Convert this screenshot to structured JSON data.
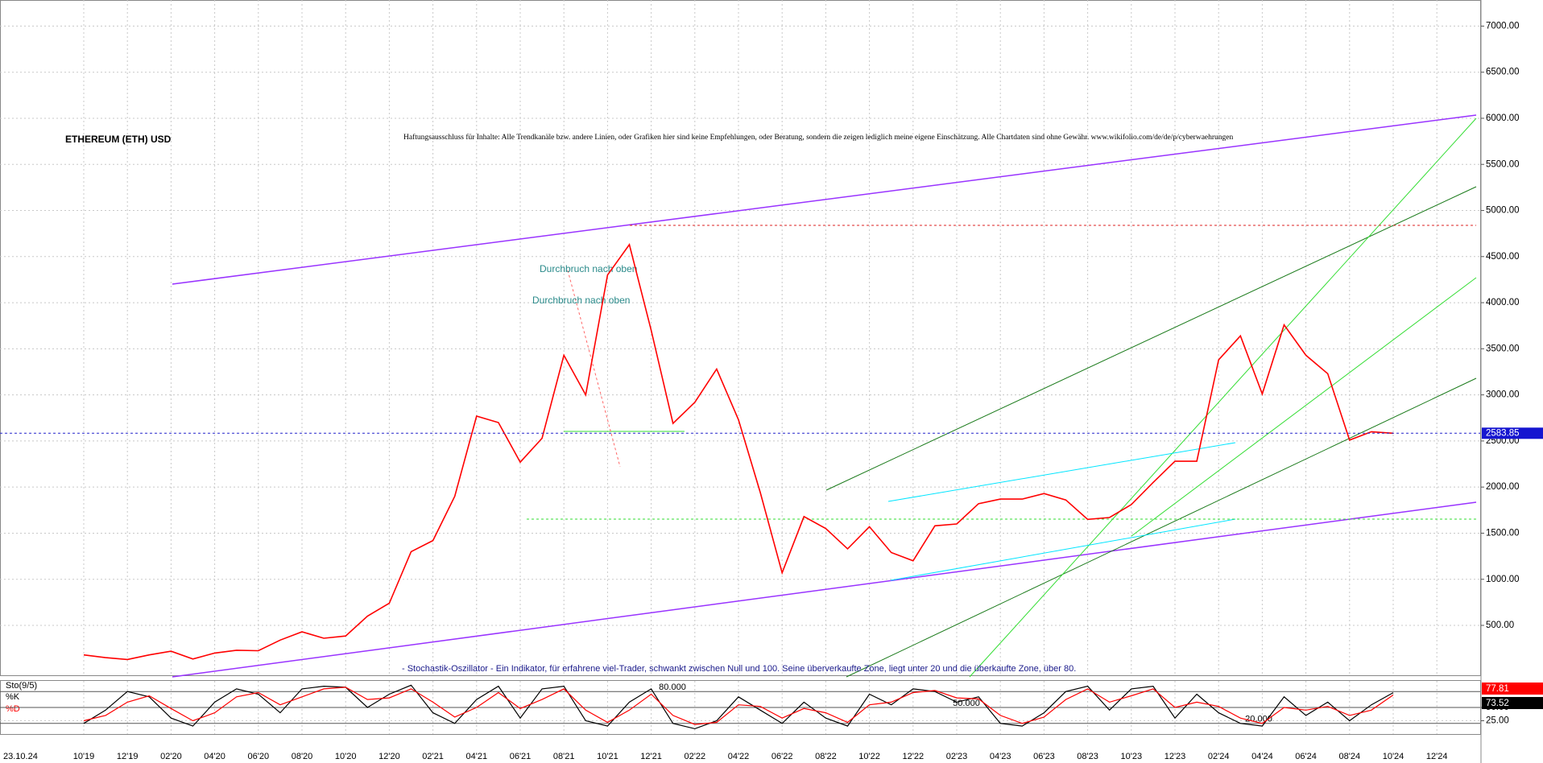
{
  "chart_data": [
    {
      "type": "line",
      "title": "ETHEREUM (ETH) USD",
      "subtitle": "Haftungsausschluss für Inhalte: Alle Trendkanäle bzw. andere Linien, oder Grafiken hier sind keine Empfehlungen, oder Beratung, sondern die zeigen lediglich meine eigene Einschätzung. Alle Chartdaten sind ohne Gewähr.  www.wikifolio.com/de/de/p/cyberwaehrungen",
      "annotations": [
        "Durchbruch nach oben",
        "Durchbruch nach oben",
        "- Stochastik-Oszillator - Ein Indikator, für erfahrene viel-Trader, schwankt zwischen Null und 100. Seine überverkaufte Zone, liegt unter 20 und die überkaufte Zone, über 80."
      ],
      "cursor_date": "23.10.24",
      "categories": [
        "10'19",
        null,
        "12'19",
        null,
        "02'20",
        null,
        "04'20",
        null,
        "06'20",
        null,
        "08'20",
        null,
        "10'20",
        null,
        "12'20",
        null,
        "02'21",
        null,
        "04'21",
        null,
        "06'21",
        null,
        "08'21",
        null,
        "10'21",
        null,
        "12'21",
        null,
        "02'22",
        null,
        "04'22",
        null,
        "06'22",
        null,
        "08'22",
        null,
        "10'22",
        null,
        "12'22",
        null,
        "02'23",
        null,
        "04'23",
        null,
        "06'23",
        null,
        "08'23",
        null,
        "10'23",
        null,
        "12'23",
        null,
        "02'24",
        null,
        "04'24",
        null,
        "06'24",
        null,
        "08'24",
        null,
        "10'24",
        null,
        "12'24"
      ],
      "values": [
        180,
        150,
        130,
        180,
        220,
        135,
        200,
        230,
        225,
        340,
        430,
        360,
        385,
        600,
        740,
        1300,
        1420,
        1900,
        2770,
        2700,
        2270,
        2530,
        3430,
        3000,
        4300,
        4630,
        3700,
        2690,
        2920,
        3280,
        2730,
        1940,
        1070,
        1680,
        1550,
        1330,
        1570,
        1290,
        1200,
        1580,
        1600,
        1820,
        1870,
        1870,
        1930,
        1860,
        1650,
        1670,
        1810,
        2050,
        2280,
        2280,
        3380,
        3640,
        3010,
        3760,
        3430,
        3230,
        2510,
        2600,
        2583.85,
        null,
        null
      ],
      "color": "#ff0000",
      "ylim": [
        -50,
        7283
      ],
      "yticks": [
        {
          "value": 500,
          "label": "500.00"
        },
        {
          "value": 1000,
          "label": "1000.00"
        },
        {
          "value": 1500,
          "label": "1500.00"
        },
        {
          "value": 2000,
          "label": "2000.00"
        },
        {
          "value": 2500,
          "label": "2500.00"
        },
        {
          "value": 3000,
          "label": "3000.00"
        },
        {
          "value": 3500,
          "label": "3500.00"
        },
        {
          "value": 4000,
          "label": "4000.00"
        },
        {
          "value": 4500,
          "label": "4500.00"
        },
        {
          "value": 5000,
          "label": "5000.00"
        },
        {
          "value": 5500,
          "label": "5500.00"
        },
        {
          "value": 6000,
          "label": "6000.00"
        },
        {
          "value": 6500,
          "label": "6500.00"
        },
        {
          "value": 7000,
          "label": "7000.00"
        }
      ],
      "grid": true
    },
    {
      "type": "line",
      "title": "Sto(9/5)",
      "series": [
        {
          "name": "%K",
          "color": "#000000",
          "values": [
            20,
            45,
            80,
            70,
            30,
            15,
            60,
            85,
            75,
            40,
            85,
            90,
            88,
            50,
            75,
            92,
            40,
            20,
            65,
            90,
            30,
            85,
            90,
            25,
            15,
            60,
            85,
            20,
            10,
            25,
            70,
            45,
            20,
            60,
            30,
            15,
            75,
            55,
            85,
            80,
            60,
            70,
            20,
            15,
            40,
            80,
            90,
            45,
            85,
            90,
            30,
            75,
            40,
            20,
            15,
            70,
            35,
            60,
            25,
            55,
            77.81,
            null,
            null
          ]
        },
        {
          "name": "%D",
          "color": "#ff0000",
          "values": [
            25,
            35,
            60,
            72,
            48,
            25,
            40,
            70,
            78,
            55,
            70,
            85,
            88,
            65,
            68,
            85,
            60,
            32,
            50,
            78,
            48,
            65,
            85,
            45,
            22,
            45,
            75,
            35,
            18,
            22,
            55,
            52,
            30,
            48,
            40,
            22,
            55,
            60,
            78,
            82,
            68,
            66,
            35,
            20,
            32,
            65,
            85,
            60,
            72,
            85,
            50,
            60,
            52,
            30,
            20,
            50,
            45,
            52,
            35,
            45,
            73.52,
            null,
            null
          ]
        }
      ],
      "levels": [
        {
          "value": 80,
          "label": "80.000"
        },
        {
          "value": 50,
          "label": "50.000"
        },
        {
          "value": 20,
          "label": "20.000"
        }
      ],
      "ylim": [
        0,
        100
      ],
      "yticks": [
        {
          "value": 50,
          "label": "50.00"
        },
        {
          "value": 25,
          "label": "25.00"
        }
      ],
      "grid": true
    }
  ]
}
